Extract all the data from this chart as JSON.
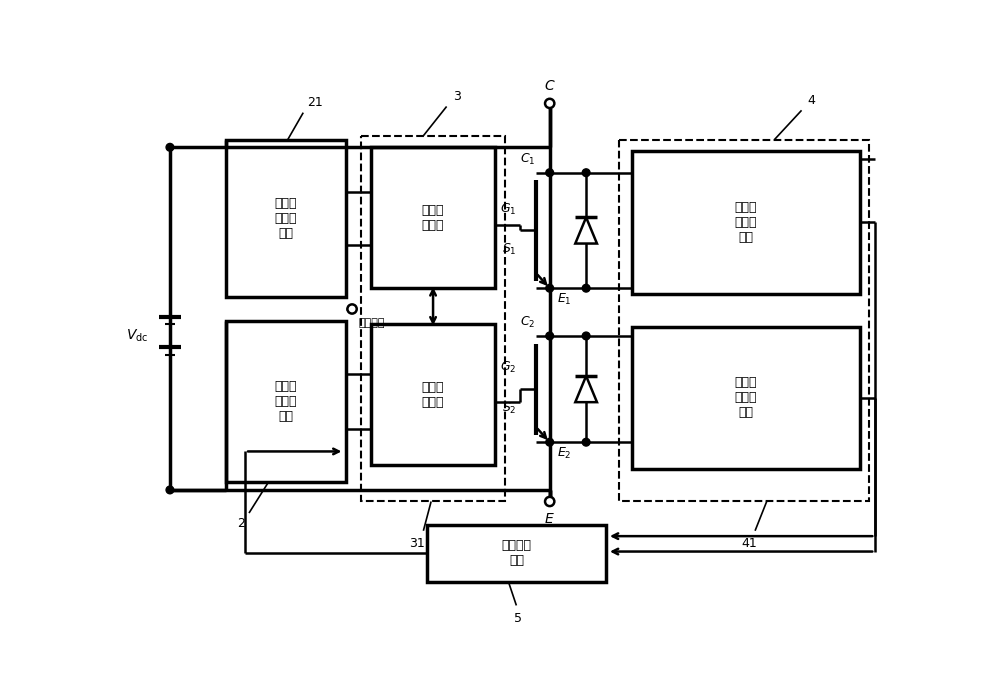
{
  "bg_color": "#ffffff",
  "line_color": "#000000",
  "fig_width": 10.0,
  "fig_height": 6.82,
  "labels": {
    "vdc": "$V_{\\mathrm{dc}}$",
    "block21": "第一可\n控驱动\n电源",
    "block22": "第二可\n控驱动\n电源",
    "block3a": "第一驱\n动电路",
    "block3b": "第二驱\n动电路",
    "block4a": "第一电\n压测量\n电路",
    "block4b": "第二电\n压测量\n电路",
    "block5": "均压调节\n模块",
    "drive_signal": "驱动信号"
  }
}
